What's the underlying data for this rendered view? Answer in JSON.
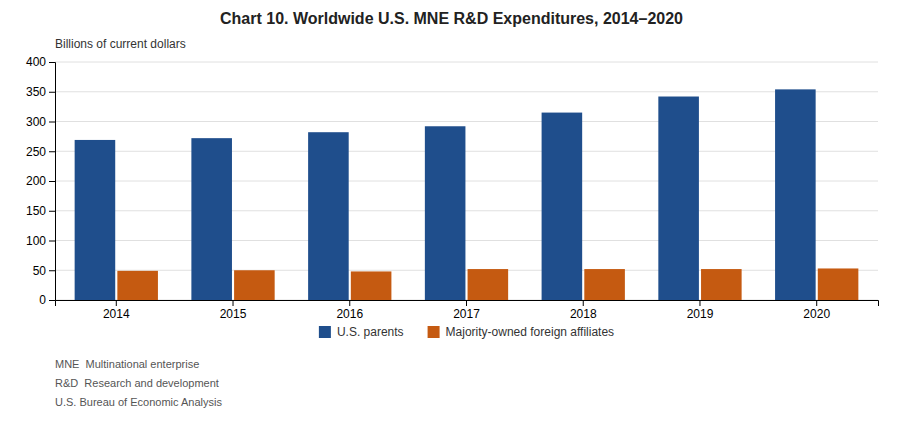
{
  "chart_data": {
    "type": "bar",
    "title": "Chart 10. Worldwide U.S. MNE R&D Expenditures, 2014–2020",
    "ylabel": "Billions of current dollars",
    "categories": [
      "2014",
      "2015",
      "2016",
      "2017",
      "2018",
      "2019",
      "2020"
    ],
    "series": [
      {
        "name": "U.S. parents",
        "color": "#1F4E8C",
        "values": [
          269,
          272,
          282,
          292,
          315,
          342,
          354
        ]
      },
      {
        "name": "Majority-owned foreign affiliates",
        "color": "#C55A11",
        "values": [
          49,
          50,
          48,
          52,
          52,
          52,
          53
        ]
      }
    ],
    "ylim": [
      0,
      400
    ],
    "yticks": [
      0,
      50,
      100,
      150,
      200,
      250,
      300,
      350,
      400
    ],
    "grid": true,
    "legend": "bottom",
    "annotations": [
      "MNE  Multinational enterprise",
      "R&D  Research and development",
      "U.S. Bureau of Economic Analysis"
    ]
  }
}
